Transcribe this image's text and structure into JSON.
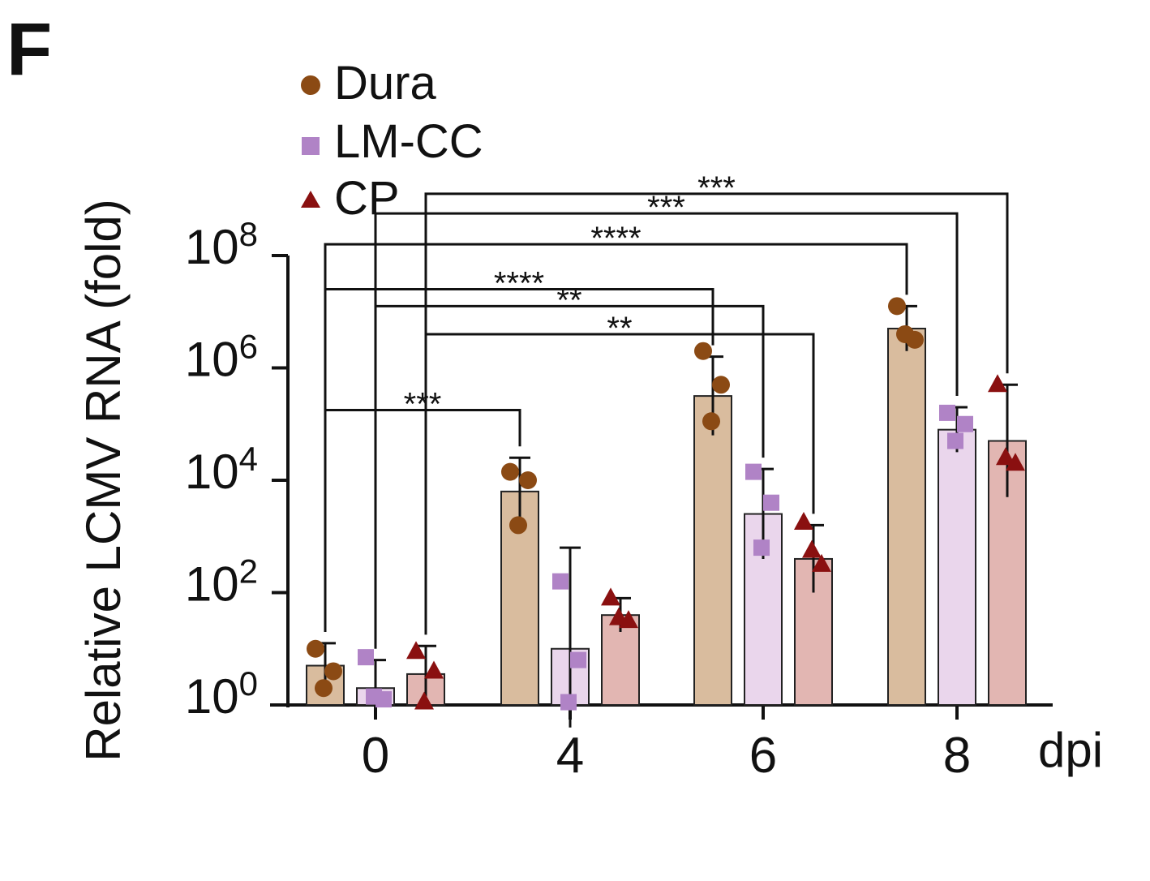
{
  "panel_label": "F",
  "colors": {
    "Dura": {
      "marker": "#8b4a14",
      "bar": "#d9bc9e"
    },
    "LM-CC": {
      "marker": "#b083c6",
      "bar": "#ead6ec"
    },
    "CP": {
      "marker": "#8a1010",
      "bar": "#e2b6b2"
    },
    "axis": "#111111"
  },
  "chart_data": {
    "type": "bar",
    "scale": "log10",
    "title": "",
    "ylabel": "Relative LCMV RNA (fold)",
    "xlabel": "dpi",
    "categories": [
      "0",
      "4",
      "6",
      "8"
    ],
    "ylim_exp": [
      -0.4,
      8
    ],
    "yticks": [
      {
        "exp": 0,
        "base": "10",
        "sup": "0"
      },
      {
        "exp": 2,
        "base": "10",
        "sup": "2"
      },
      {
        "exp": 4,
        "base": "10",
        "sup": "4"
      },
      {
        "exp": 6,
        "base": "10",
        "sup": "6"
      },
      {
        "exp": 8,
        "base": "10",
        "sup": "8"
      }
    ],
    "legend": {
      "position": "top-left",
      "entries": [
        "Dura",
        "LM-CC",
        "CP"
      ]
    },
    "series": [
      {
        "name": "Dura",
        "marker": "circle",
        "mean_log10": [
          0.7,
          3.8,
          5.5,
          6.7
        ],
        "err_log10": [
          0.4,
          0.6,
          0.7,
          0.4
        ],
        "points_log10": [
          [
            1.0,
            0.6,
            0.3
          ],
          [
            4.15,
            4.0,
            3.2
          ],
          [
            6.3,
            5.7,
            5.05
          ],
          [
            7.1,
            6.5,
            6.6
          ]
        ]
      },
      {
        "name": "LM-CC",
        "marker": "square",
        "mean_log10": [
          0.3,
          1.0,
          3.4,
          4.9
        ],
        "err_log10": [
          0.5,
          1.8,
          0.8,
          0.4
        ],
        "points_log10": [
          [
            0.85,
            0.1,
            0.15
          ],
          [
            2.2,
            0.8,
            0.05
          ],
          [
            4.15,
            3.6,
            2.8
          ],
          [
            5.2,
            5.0,
            4.7
          ]
        ]
      },
      {
        "name": "CP",
        "marker": "triangle",
        "mean_log10": [
          0.55,
          1.6,
          2.6,
          4.7
        ],
        "err_log10": [
          0.5,
          0.3,
          0.6,
          1.0
        ],
        "points_log10": [
          [
            0.95,
            0.6,
            0.05
          ],
          [
            1.9,
            1.5,
            1.55
          ],
          [
            3.25,
            2.5,
            2.75
          ],
          [
            5.7,
            4.3,
            4.4
          ]
        ]
      }
    ],
    "significance": [
      {
        "label": "***",
        "from": {
          "group": 0,
          "series": 0
        },
        "to": {
          "group": 1,
          "series": 0
        },
        "level_log10": 5.25
      },
      {
        "label": "**",
        "from": {
          "group": 0,
          "series": 2
        },
        "to": {
          "group": 2,
          "series": 2
        },
        "level_log10": 6.6
      },
      {
        "label": "**",
        "from": {
          "group": 0,
          "series": 1
        },
        "to": {
          "group": 2,
          "series": 1
        },
        "level_log10": 7.1
      },
      {
        "label": "****",
        "from": {
          "group": 0,
          "series": 0
        },
        "to": {
          "group": 2,
          "series": 0
        },
        "level_log10": 7.4
      },
      {
        "label": "****",
        "from": {
          "group": 0,
          "series": 0
        },
        "to": {
          "group": 3,
          "series": 0
        },
        "level_log10": 8.2
      },
      {
        "label": "***",
        "from": {
          "group": 0,
          "series": 1
        },
        "to": {
          "group": 3,
          "series": 1
        },
        "level_log10": 8.75
      },
      {
        "label": "***",
        "from": {
          "group": 0,
          "series": 2
        },
        "to": {
          "group": 3,
          "series": 2
        },
        "level_log10": 9.1
      }
    ]
  }
}
